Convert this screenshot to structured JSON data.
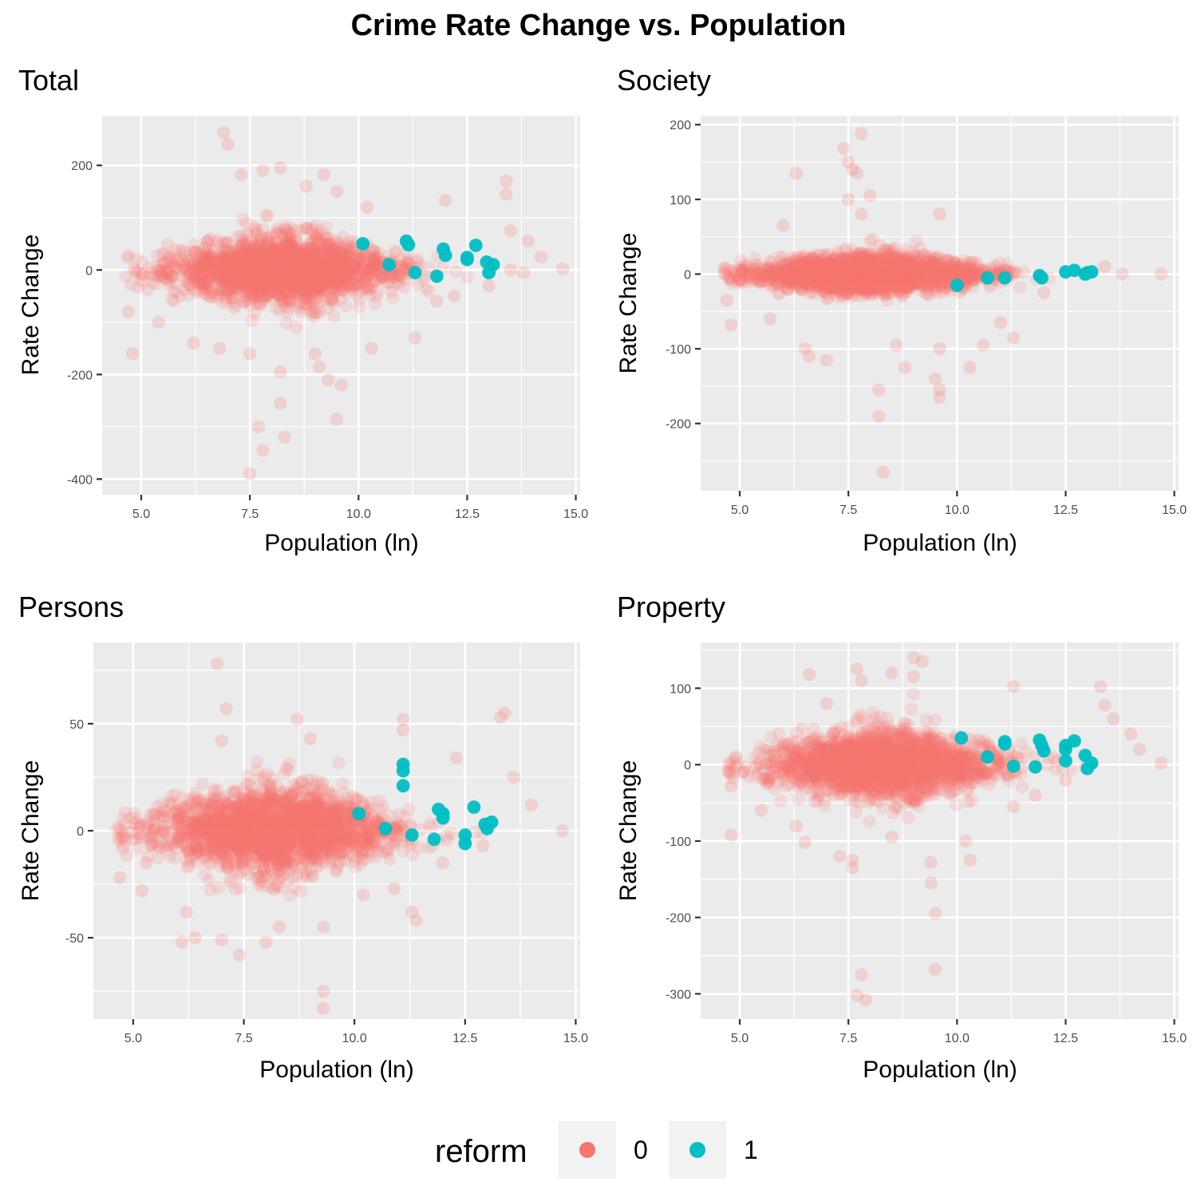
{
  "title": "Crime Rate Change vs. Population",
  "colors": {
    "reform_0": "#F8766D",
    "reform_1": "#00BFC4",
    "panel_bg": "#EBEBEB",
    "grid": "#FFFFFF"
  },
  "legend": {
    "title": "reform",
    "placement": "bottom",
    "items": [
      {
        "key": "0",
        "label": "0",
        "color": "#F8766D"
      },
      {
        "key": "1",
        "label": "1",
        "color": "#00BFC4"
      }
    ]
  },
  "chart_data": [
    {
      "type": "scatter",
      "title": "Total",
      "xlabel": "Population (ln)",
      "ylabel": "Rate Change",
      "xlim": [
        4.1,
        15.1
      ],
      "ylim": [
        -430,
        295
      ],
      "xticks": [
        5.0,
        7.5,
        10.0,
        12.5,
        15.0
      ],
      "xtick_labels": [
        "5.0",
        "7.5",
        "10.0",
        "12.5",
        "15.0"
      ],
      "yticks": [
        -400,
        -200,
        0,
        200
      ],
      "ytick_labels": [
        "-400",
        "-200",
        "0",
        "200"
      ],
      "grid": true,
      "series": [
        {
          "name": "0",
          "cloud": {
            "n": 2200,
            "center": 8.3,
            "spread": 1.3,
            "ysd": 34,
            "xmin": 4.6,
            "xmax": 14.7
          },
          "outliers": [
            [
              6.9,
              262
            ],
            [
              7.0,
              240
            ],
            [
              7.3,
              182
            ],
            [
              7.8,
              190
            ],
            [
              8.2,
              195
            ],
            [
              8.8,
              160
            ],
            [
              9.2,
              182
            ],
            [
              9.5,
              150
            ],
            [
              10.2,
              120
            ],
            [
              12.0,
              133
            ],
            [
              13.4,
              170
            ],
            [
              13.4,
              145
            ],
            [
              13.5,
              75
            ],
            [
              13.9,
              55
            ],
            [
              14.2,
              25
            ],
            [
              14.7,
              2
            ],
            [
              4.7,
              -80
            ],
            [
              4.8,
              -160
            ],
            [
              5.4,
              -100
            ],
            [
              6.2,
              -140
            ],
            [
              6.8,
              -150
            ],
            [
              7.5,
              -160
            ],
            [
              7.7,
              -300
            ],
            [
              7.8,
              -345
            ],
            [
              7.5,
              -390
            ],
            [
              8.2,
              -195
            ],
            [
              8.2,
              -255
            ],
            [
              8.3,
              -320
            ],
            [
              9.1,
              -185
            ],
            [
              9.3,
              -210
            ],
            [
              9.5,
              -285
            ],
            [
              9.6,
              -220
            ],
            [
              9.0,
              -160
            ],
            [
              10.3,
              -150
            ],
            [
              11.3,
              -130
            ],
            [
              12.2,
              -50
            ],
            [
              11.8,
              -60
            ],
            [
              13.0,
              -30
            ],
            [
              13.5,
              0
            ],
            [
              13.8,
              -5
            ]
          ]
        },
        {
          "name": "1",
          "points": [
            [
              10.1,
              50
            ],
            [
              10.7,
              10
            ],
            [
              11.1,
              55
            ],
            [
              11.15,
              48
            ],
            [
              11.3,
              -5
            ],
            [
              11.8,
              -12
            ],
            [
              11.95,
              40
            ],
            [
              12.0,
              28
            ],
            [
              12.5,
              24
            ],
            [
              12.7,
              47
            ],
            [
              12.95,
              15
            ],
            [
              13.0,
              -5
            ],
            [
              13.1,
              10
            ],
            [
              12.5,
              20
            ]
          ]
        }
      ]
    },
    {
      "type": "scatter",
      "title": "Society",
      "xlabel": "Population (ln)",
      "ylabel": "Rate Change",
      "xlim": [
        4.1,
        15.1
      ],
      "ylim": [
        -290,
        212
      ],
      "xticks": [
        5.0,
        7.5,
        10.0,
        12.5,
        15.0
      ],
      "xtick_labels": [
        "5.0",
        "7.5",
        "10.0",
        "12.5",
        "15.0"
      ],
      "yticks": [
        -200,
        -100,
        0,
        100,
        200
      ],
      "ytick_labels": [
        "-200",
        "-100",
        "0",
        "100",
        "200"
      ],
      "grid": true,
      "series": [
        {
          "name": "0",
          "cloud": {
            "n": 2200,
            "center": 8.0,
            "spread": 1.3,
            "ysd": 14,
            "xmin": 4.6,
            "xmax": 14.7
          },
          "outliers": [
            [
              7.8,
              188
            ],
            [
              7.4,
              168
            ],
            [
              7.5,
              150
            ],
            [
              7.6,
              140
            ],
            [
              7.7,
              135
            ],
            [
              6.3,
              135
            ],
            [
              8.0,
              105
            ],
            [
              7.5,
              100
            ],
            [
              7.8,
              80
            ],
            [
              9.6,
              80
            ],
            [
              6.0,
              65
            ],
            [
              4.7,
              -35
            ],
            [
              4.8,
              -68
            ],
            [
              5.7,
              -60
            ],
            [
              6.5,
              -100
            ],
            [
              6.6,
              -110
            ],
            [
              7.0,
              -115
            ],
            [
              8.2,
              -155
            ],
            [
              8.2,
              -190
            ],
            [
              8.3,
              -265
            ],
            [
              8.6,
              -95
            ],
            [
              8.8,
              -125
            ],
            [
              9.5,
              -140
            ],
            [
              9.6,
              -155
            ],
            [
              9.6,
              -165
            ],
            [
              9.6,
              -100
            ],
            [
              10.3,
              -125
            ],
            [
              10.6,
              -95
            ],
            [
              11.3,
              -85
            ],
            [
              11.0,
              -65
            ],
            [
              12.0,
              -25
            ],
            [
              14.7,
              0
            ],
            [
              13.8,
              0
            ],
            [
              13.4,
              10
            ]
          ]
        },
        {
          "name": "1",
          "points": [
            [
              10.0,
              -15
            ],
            [
              10.7,
              -5
            ],
            [
              11.1,
              -5
            ],
            [
              11.9,
              -2
            ],
            [
              12.5,
              3
            ],
            [
              12.7,
              5
            ],
            [
              12.95,
              0
            ],
            [
              13.0,
              2
            ],
            [
              13.1,
              3
            ],
            [
              11.95,
              -5
            ]
          ]
        }
      ]
    },
    {
      "type": "scatter",
      "title": "Persons",
      "xlabel": "Population (ln)",
      "ylabel": "Rate Change",
      "xlim": [
        4.1,
        15.1
      ],
      "ylim": [
        -88,
        88
      ],
      "xticks": [
        5.0,
        7.5,
        10.0,
        12.5,
        15.0
      ],
      "xtick_labels": [
        "5.0",
        "7.5",
        "10.0",
        "12.5",
        "15.0"
      ],
      "yticks": [
        -50,
        0,
        50
      ],
      "ytick_labels": [
        "-50",
        "0",
        "50"
      ],
      "grid": true,
      "series": [
        {
          "name": "0",
          "cloud": {
            "n": 2200,
            "center": 8.2,
            "spread": 1.35,
            "ysd": 11,
            "xmin": 4.6,
            "xmax": 14.7
          },
          "outliers": [
            [
              6.9,
              78
            ],
            [
              7.1,
              57
            ],
            [
              7.0,
              42
            ],
            [
              8.7,
              52
            ],
            [
              9.0,
              43
            ],
            [
              11.1,
              52
            ],
            [
              11.1,
              47
            ],
            [
              12.3,
              34
            ],
            [
              13.4,
              55
            ],
            [
              13.3,
              53
            ],
            [
              13.6,
              25
            ],
            [
              14.0,
              12
            ],
            [
              14.7,
              0
            ],
            [
              4.7,
              -22
            ],
            [
              5.3,
              -15
            ],
            [
              5.2,
              -28
            ],
            [
              6.2,
              -38
            ],
            [
              6.1,
              -52
            ],
            [
              6.4,
              -50
            ],
            [
              7.0,
              -51
            ],
            [
              7.4,
              -58
            ],
            [
              8.0,
              -52
            ],
            [
              8.3,
              -45
            ],
            [
              9.3,
              -75
            ],
            [
              9.3,
              -83
            ],
            [
              9.3,
              -45
            ],
            [
              10.2,
              -30
            ],
            [
              11.3,
              -38
            ],
            [
              11.4,
              -42
            ],
            [
              10.9,
              -27
            ],
            [
              12.0,
              -15
            ],
            [
              12.9,
              -7
            ]
          ]
        },
        {
          "name": "1",
          "points": [
            [
              10.1,
              8
            ],
            [
              10.7,
              1
            ],
            [
              11.1,
              31
            ],
            [
              11.1,
              28
            ],
            [
              11.1,
              21
            ],
            [
              11.3,
              -2
            ],
            [
              11.8,
              -4
            ],
            [
              11.9,
              10
            ],
            [
              12.0,
              8
            ],
            [
              12.5,
              -2
            ],
            [
              12.5,
              -6
            ],
            [
              12.7,
              11
            ],
            [
              12.95,
              3
            ],
            [
              13.0,
              1
            ],
            [
              13.1,
              4
            ],
            [
              12.0,
              6
            ]
          ]
        }
      ]
    },
    {
      "type": "scatter",
      "title": "Property",
      "xlabel": "Population (ln)",
      "ylabel": "Rate Change",
      "xlim": [
        4.1,
        15.1
      ],
      "ylim": [
        -333,
        160
      ],
      "xticks": [
        5.0,
        7.5,
        10.0,
        12.5,
        15.0
      ],
      "xtick_labels": [
        "5.0",
        "7.5",
        "10.0",
        "12.5",
        "15.0"
      ],
      "yticks": [
        -300,
        -200,
        -100,
        0,
        100
      ],
      "ytick_labels": [
        "-300",
        "-200",
        "-100",
        "0",
        "100"
      ],
      "grid": true,
      "series": [
        {
          "name": "0",
          "cloud": {
            "n": 2200,
            "center": 8.3,
            "spread": 1.3,
            "ysd": 24,
            "xmin": 4.6,
            "xmax": 14.7
          },
          "outliers": [
            [
              6.6,
              118
            ],
            [
              7.0,
              80
            ],
            [
              7.7,
              125
            ],
            [
              7.8,
              110
            ],
            [
              8.5,
              120
            ],
            [
              9.0,
              140
            ],
            [
              9.2,
              135
            ],
            [
              9.0,
              115
            ],
            [
              11.3,
              102
            ],
            [
              13.3,
              102
            ],
            [
              13.4,
              78
            ],
            [
              13.6,
              60
            ],
            [
              14.0,
              40
            ],
            [
              14.2,
              20
            ],
            [
              14.7,
              2
            ],
            [
              4.8,
              -28
            ],
            [
              4.8,
              -92
            ],
            [
              5.5,
              -60
            ],
            [
              6.3,
              -80
            ],
            [
              6.5,
              -102
            ],
            [
              7.3,
              -120
            ],
            [
              7.6,
              -125
            ],
            [
              7.6,
              -135
            ],
            [
              7.7,
              -302
            ],
            [
              7.8,
              -275
            ],
            [
              7.9,
              -308
            ],
            [
              8.5,
              -95
            ],
            [
              9.4,
              -128
            ],
            [
              9.4,
              -155
            ],
            [
              9.5,
              -195
            ],
            [
              9.5,
              -268
            ],
            [
              10.2,
              -100
            ],
            [
              10.3,
              -125
            ],
            [
              11.3,
              -55
            ],
            [
              11.8,
              -40
            ],
            [
              12.5,
              -20
            ]
          ]
        },
        {
          "name": "1",
          "points": [
            [
              10.1,
              35
            ],
            [
              10.7,
              10
            ],
            [
              11.1,
              30
            ],
            [
              11.1,
              27
            ],
            [
              11.3,
              -2
            ],
            [
              11.8,
              -3
            ],
            [
              11.9,
              32
            ],
            [
              12.0,
              18
            ],
            [
              12.5,
              20
            ],
            [
              12.5,
              5
            ],
            [
              12.7,
              31
            ],
            [
              12.95,
              12
            ],
            [
              13.0,
              -5
            ],
            [
              13.1,
              2
            ],
            [
              11.95,
              25
            ],
            [
              12.5,
              25
            ]
          ]
        }
      ]
    }
  ]
}
